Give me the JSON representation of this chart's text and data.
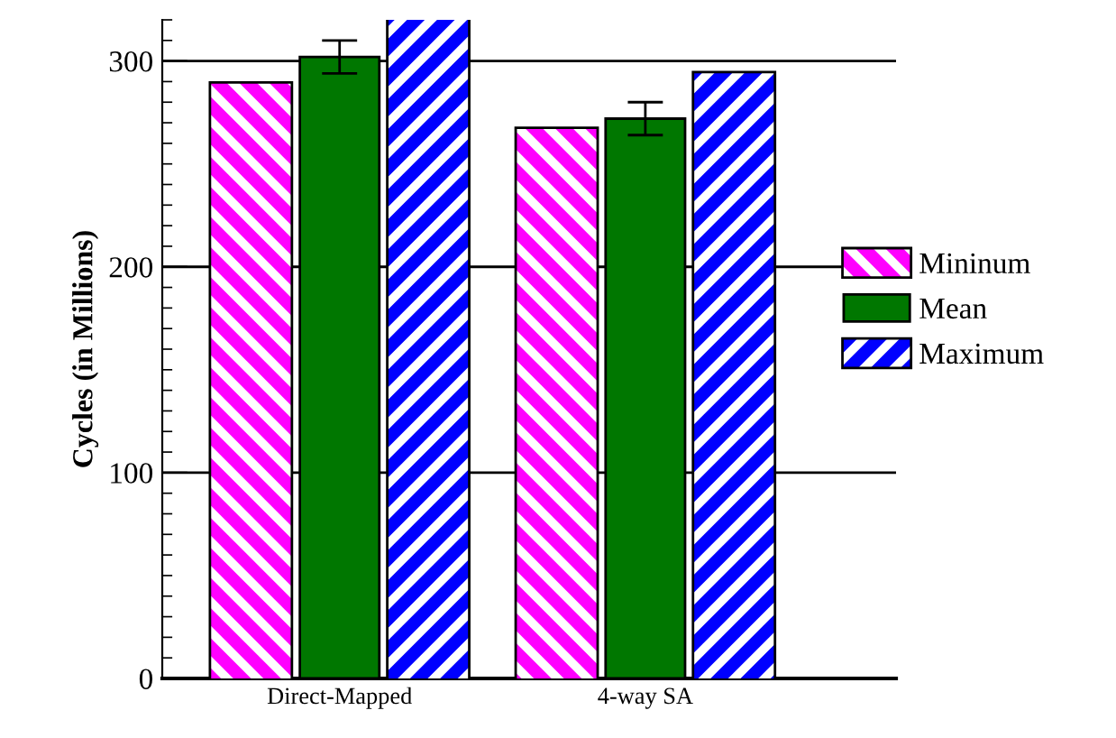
{
  "chart_data": {
    "type": "bar",
    "ylabel": "Cycles (in Millions)",
    "categories": [
      "Direct-Mapped",
      "4-way SA"
    ],
    "series": [
      {
        "name": "Mininum",
        "color": "#ff00ff",
        "values": [
          289,
          267
        ]
      },
      {
        "name": "Mean",
        "color": "#007700",
        "values": [
          302,
          272
        ],
        "errors": [
          [
            294,
            310
          ],
          [
            264,
            280
          ]
        ]
      },
      {
        "name": "Maximum",
        "color": "#0000ff",
        "values": [
          320,
          294
        ]
      }
    ],
    "ylim": [
      0,
      320
    ],
    "yticks": [
      0,
      100,
      200,
      300
    ],
    "grid": "y",
    "legend": "right"
  }
}
